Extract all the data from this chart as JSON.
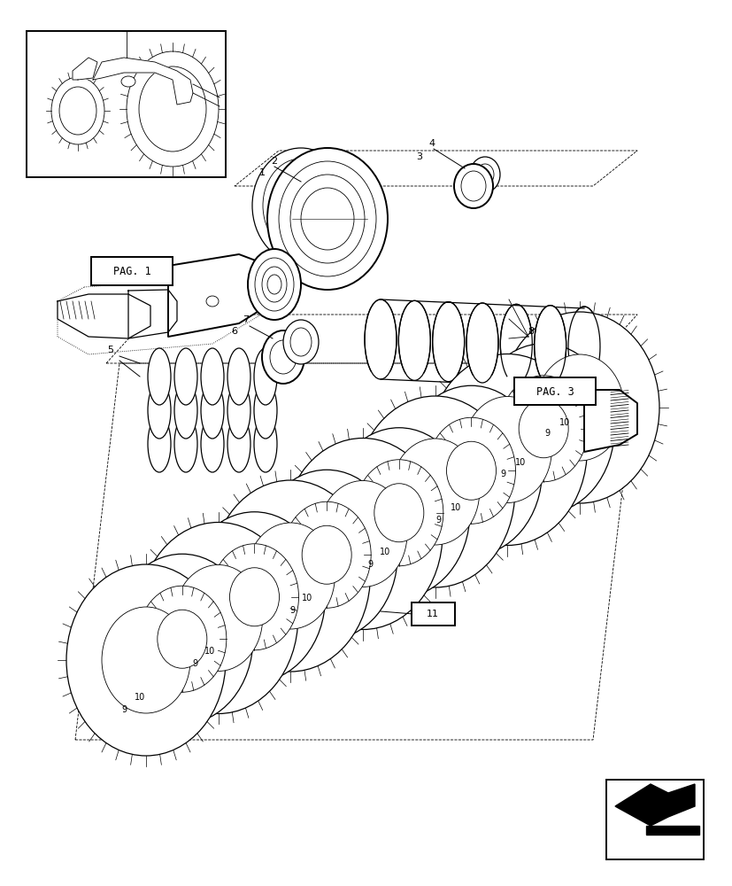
{
  "background_color": "#ffffff",
  "line_color": "#000000",
  "page_width": 8.28,
  "page_height": 10.0,
  "dpi": 100,
  "pag1_label": "PAG. 1",
  "pag3_label": "PAG. 3"
}
